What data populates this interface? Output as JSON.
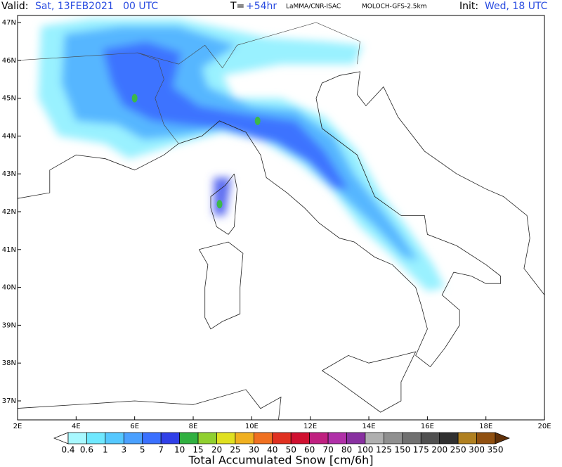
{
  "header": {
    "valid_label": "Valid:",
    "valid_time": "Sat, 13FEB2021   00 UTC",
    "lead_label": "T=",
    "lead_time": "+54hr",
    "institution": "LaMMA/CNR-ISAC",
    "model": "MOLOCH-GFS-2.5km",
    "init_label": "Init:",
    "init_time": "Wed, 18 UTC"
  },
  "map": {
    "lat_labels": [
      "47N",
      "46N",
      "45N",
      "44N",
      "43N",
      "42N",
      "41N",
      "40N",
      "39N",
      "38N",
      "37N"
    ],
    "lon_labels": [
      "2E",
      "4E",
      "6E",
      "8E",
      "10E",
      "12E",
      "14E",
      "16E",
      "18E",
      "20E"
    ]
  },
  "colorbar": {
    "title": "Total Accumulated Snow [cm/6h]",
    "labels": [
      "0.4",
      "0.6",
      "1",
      "3",
      "5",
      "7",
      "10",
      "15",
      "20",
      "25",
      "30",
      "40",
      "50",
      "60",
      "70",
      "80",
      "100",
      "125",
      "150",
      "175",
      "200",
      "250",
      "300",
      "350"
    ]
  }
}
